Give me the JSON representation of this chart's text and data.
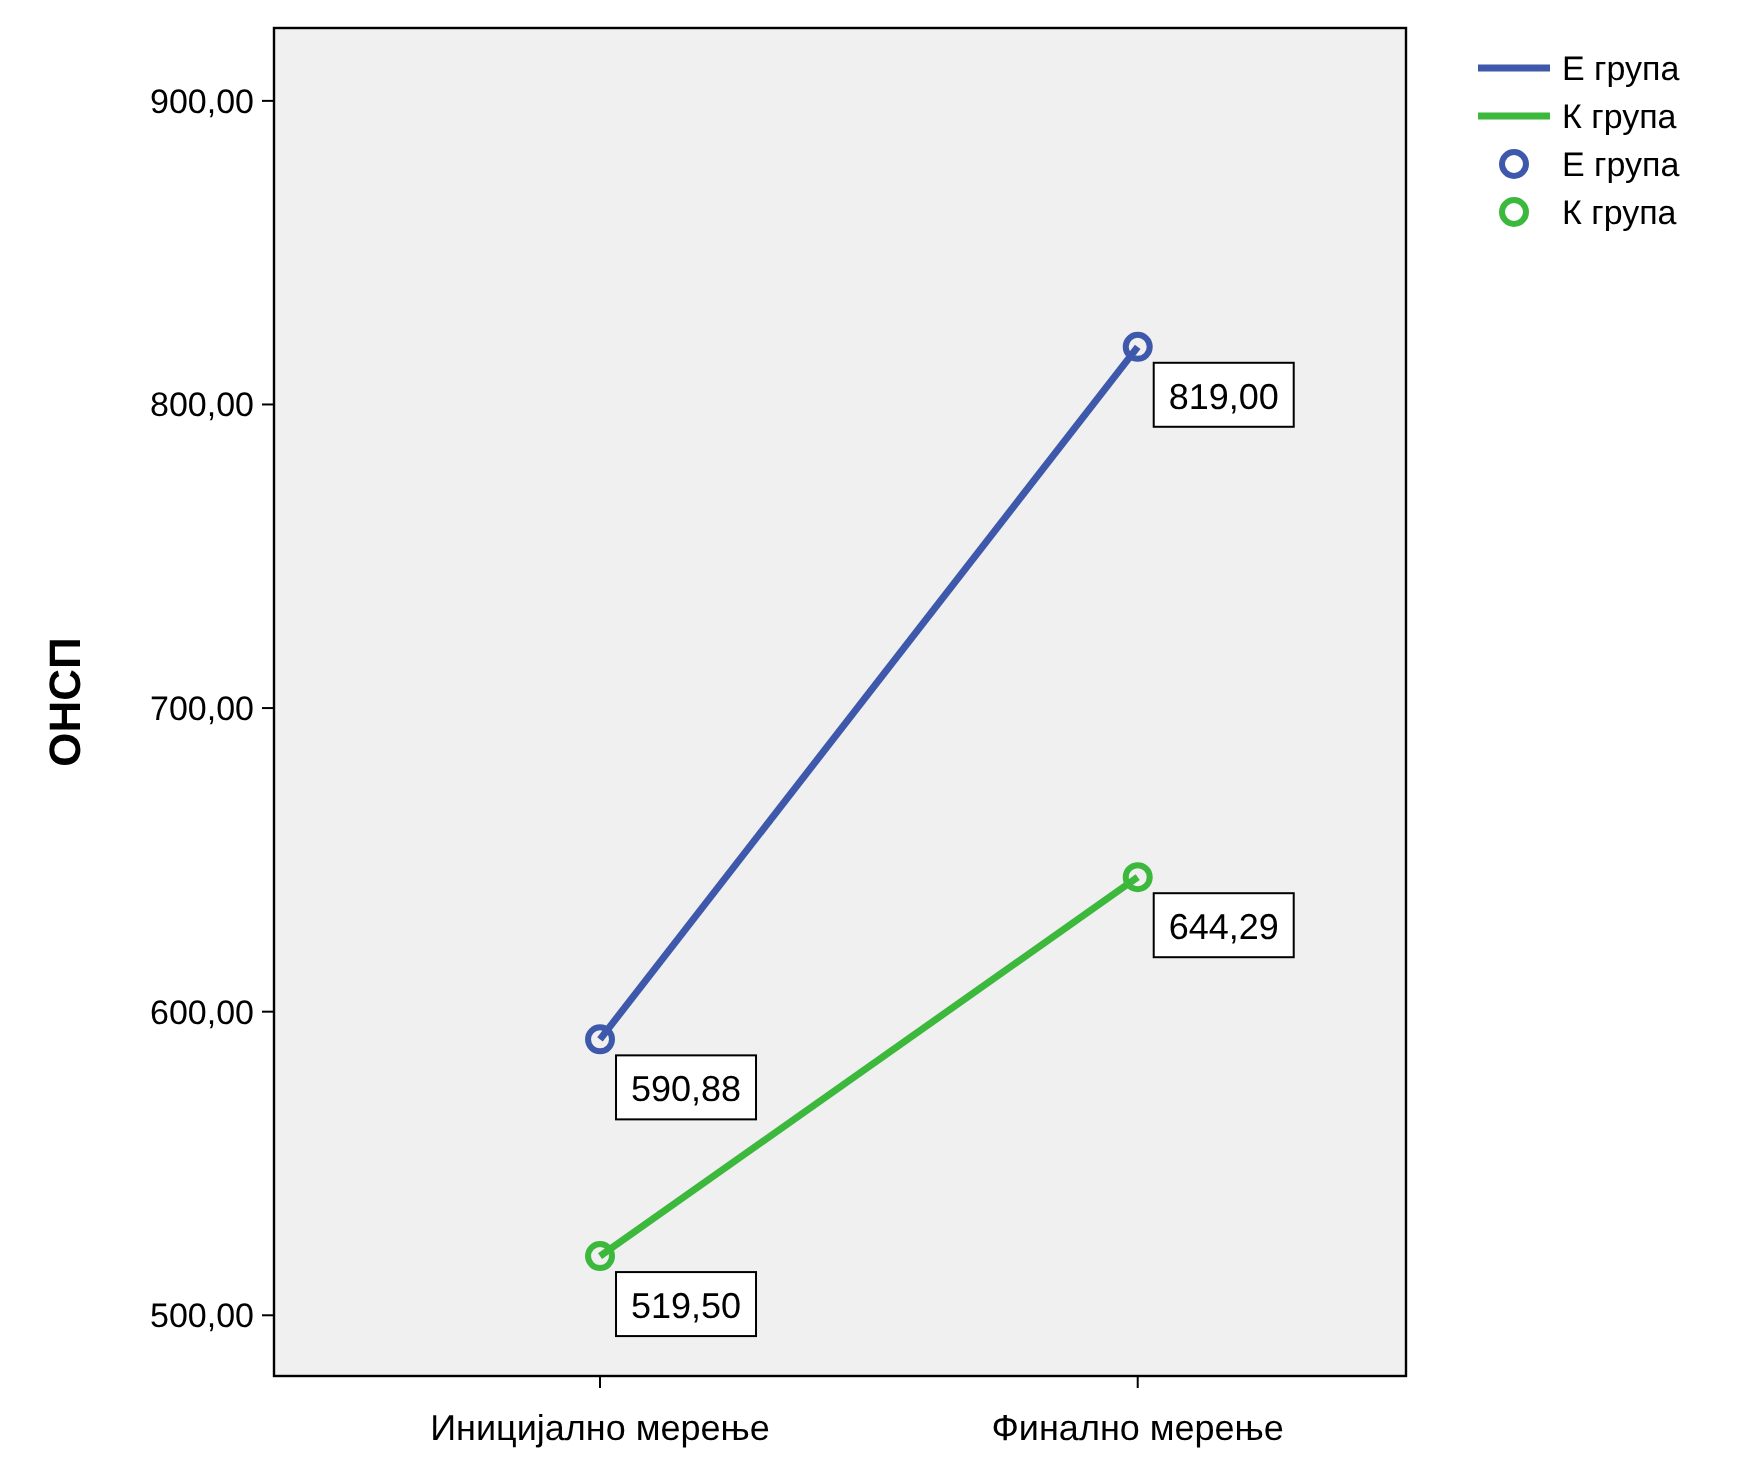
{
  "chart_data": {
    "type": "line",
    "ylabel": "ОНСП",
    "categories": [
      "Иницијално мерење",
      "Финално мерење"
    ],
    "series": [
      {
        "name": "Е група",
        "color": "#3e58ac",
        "values": [
          590.88,
          819.0
        ],
        "value_labels": [
          "590,88",
          "819,00"
        ]
      },
      {
        "name": "К група",
        "color": "#3cb83c",
        "values": [
          519.5,
          644.29
        ],
        "value_labels": [
          "519,50",
          "644,29"
        ]
      }
    ],
    "ylim": [
      480,
      924
    ],
    "yticks": [
      {
        "value": 500,
        "label": "500,00"
      },
      {
        "value": 600,
        "label": "600,00"
      },
      {
        "value": 700,
        "label": "700,00"
      },
      {
        "value": 800,
        "label": "800,00"
      },
      {
        "value": 900,
        "label": "900,00"
      }
    ],
    "marker": "circle",
    "line_style": "solid",
    "grid": false,
    "legend": "top right"
  }
}
